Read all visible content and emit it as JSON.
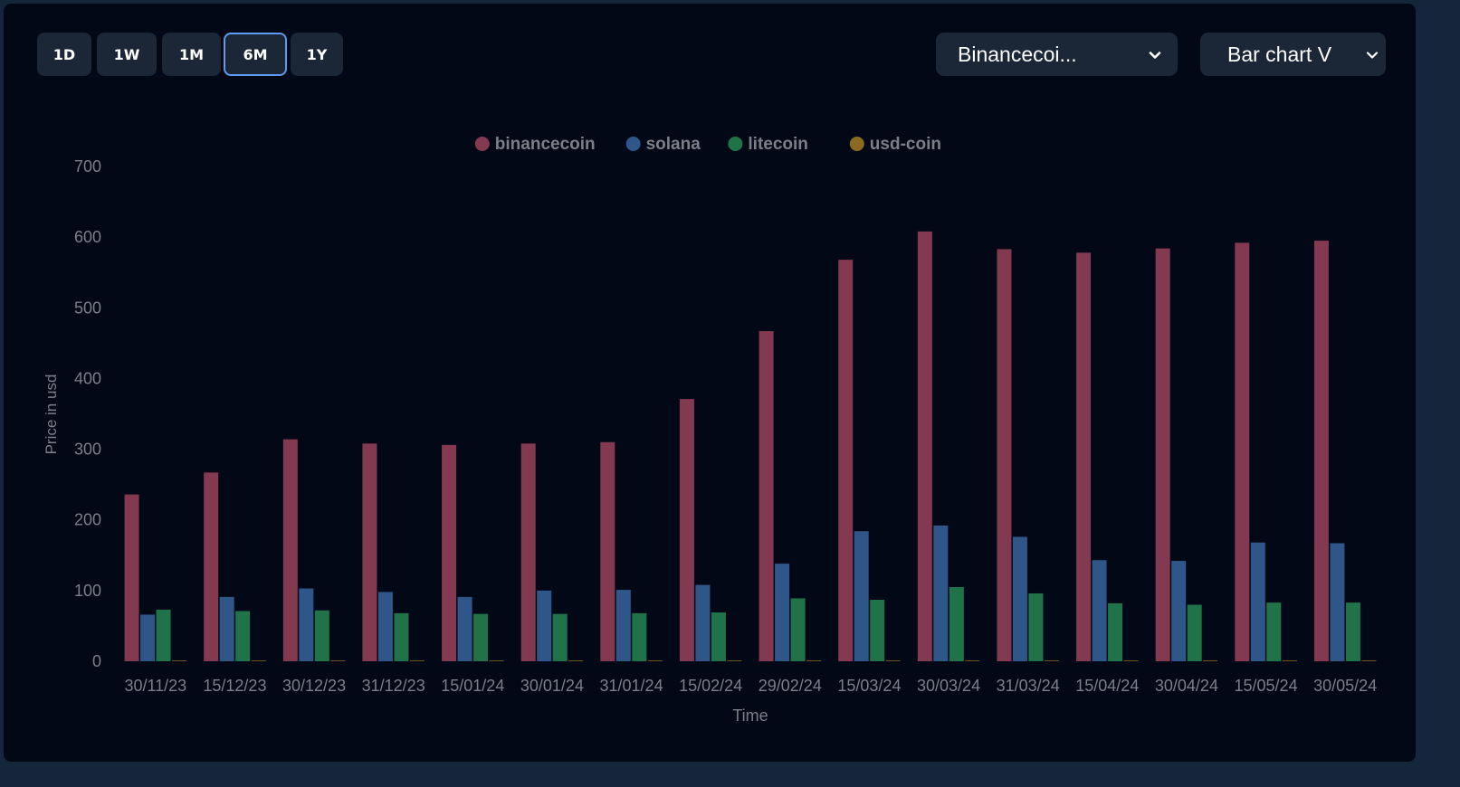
{
  "controls": {
    "ranges": [
      "1D",
      "1W",
      "1M",
      "6M",
      "1Y"
    ],
    "active_range": "6M",
    "coin_select": {
      "value": "Binancecoi..."
    },
    "chart_select": {
      "value": "Bar chart V"
    }
  },
  "chart_data": {
    "type": "bar",
    "categories": [
      "30/11/23",
      "15/12/23",
      "30/12/23",
      "31/12/23",
      "15/01/24",
      "30/01/24",
      "31/01/24",
      "15/02/24",
      "29/02/24",
      "15/03/24",
      "30/03/24",
      "31/03/24",
      "15/04/24",
      "30/04/24",
      "15/05/24",
      "30/05/24"
    ],
    "series": [
      {
        "name": "binancecoin",
        "color": "#833a51",
        "values": [
          236,
          267,
          314,
          308,
          306,
          308,
          310,
          371,
          467,
          568,
          608,
          583,
          578,
          584,
          592,
          595
        ]
      },
      {
        "name": "solana",
        "color": "#2e5688",
        "values": [
          66,
          91,
          103,
          98,
          91,
          100,
          101,
          108,
          138,
          184,
          192,
          176,
          143,
          142,
          168,
          167
        ]
      },
      {
        "name": "litecoin",
        "color": "#207348",
        "values": [
          73,
          71,
          72,
          68,
          67,
          67,
          68,
          69,
          89,
          87,
          105,
          96,
          82,
          80,
          83,
          83
        ]
      },
      {
        "name": "usd-coin",
        "color": "#8a6a21",
        "values": [
          1,
          1,
          1,
          1,
          1,
          1,
          1,
          1,
          1,
          1,
          1,
          1,
          1,
          1,
          1,
          1
        ]
      }
    ],
    "xlabel": "Time",
    "ylabel": "Price in usd",
    "ylim": [
      0,
      700
    ],
    "yticks": [
      0,
      100,
      200,
      300,
      400,
      500,
      600,
      700
    ],
    "grid": false,
    "legend": "top-center"
  }
}
